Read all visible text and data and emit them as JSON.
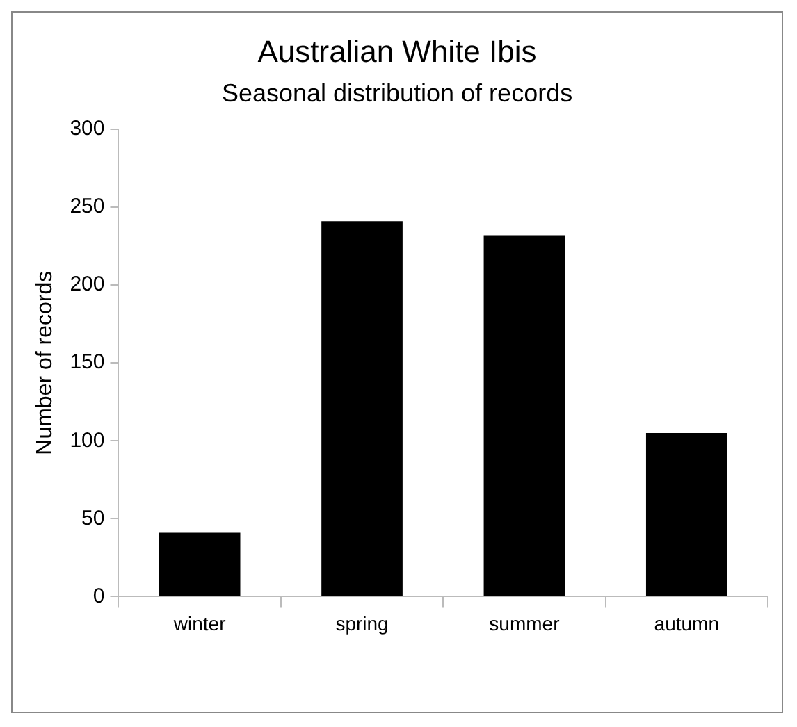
{
  "chart_data": {
    "type": "bar",
    "title": "Australian White Ibis",
    "subtitle": "Seasonal distribution of records",
    "ylabel": "Number of records",
    "categories": [
      "winter",
      "spring",
      "summer",
      "autumn"
    ],
    "values": [
      41,
      241,
      232,
      105
    ],
    "color": "#000000",
    "ylim": [
      0,
      300
    ],
    "yticks": [
      0,
      50,
      100,
      150,
      200,
      250,
      300
    ],
    "grid": false,
    "legend": false
  }
}
